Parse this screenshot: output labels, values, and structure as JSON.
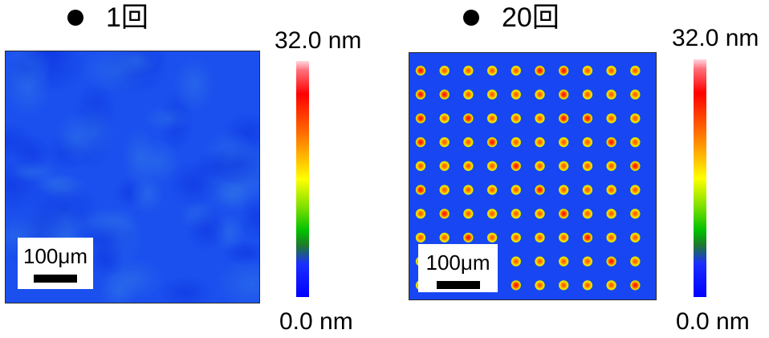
{
  "panels": [
    {
      "title": "1回",
      "scale_label": "100μm",
      "colorbar": {
        "max_label": "32.0 nm",
        "min_label": "0.0 nm"
      },
      "dot_grid": {
        "rows": 0,
        "cols": 0
      }
    },
    {
      "title": "20回",
      "scale_label": "100μm",
      "colorbar": {
        "max_label": "32.0 nm",
        "min_label": "0.0 nm"
      },
      "dot_grid": {
        "rows": 10,
        "cols": 10
      }
    }
  ],
  "colors": {
    "background_blue": "#1a4df0",
    "dot_outer": "#ffe000",
    "dot_inner": "#ff6a00",
    "dot_hot": "#ff1a00"
  }
}
